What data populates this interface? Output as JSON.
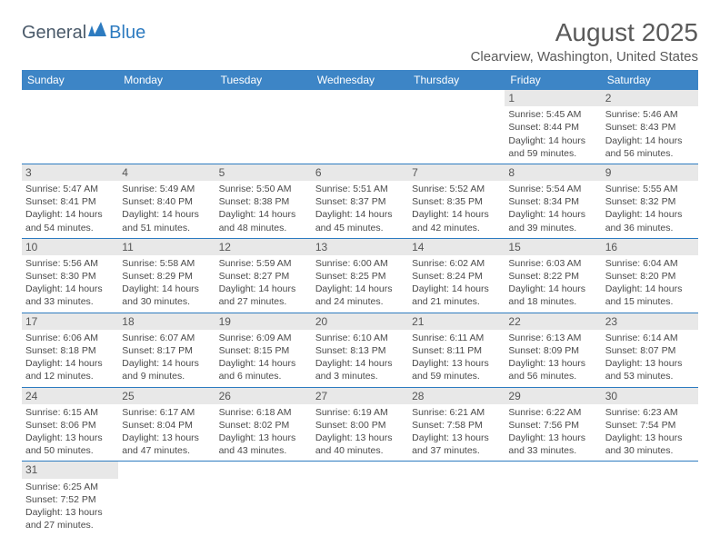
{
  "logo": {
    "text1": "General",
    "text2": "Blue"
  },
  "title": "August 2025",
  "location": "Clearview, Washington, United States",
  "header_color": "#3d85c6",
  "border_color": "#2d7bc0",
  "daynum_bg": "#e8e8e8",
  "weekdays": [
    "Sunday",
    "Monday",
    "Tuesday",
    "Wednesday",
    "Thursday",
    "Friday",
    "Saturday"
  ],
  "weeks": [
    [
      null,
      null,
      null,
      null,
      null,
      {
        "n": "1",
        "sr": "5:45 AM",
        "ss": "8:44 PM",
        "dl": "14 hours and 59 minutes."
      },
      {
        "n": "2",
        "sr": "5:46 AM",
        "ss": "8:43 PM",
        "dl": "14 hours and 56 minutes."
      }
    ],
    [
      {
        "n": "3",
        "sr": "5:47 AM",
        "ss": "8:41 PM",
        "dl": "14 hours and 54 minutes."
      },
      {
        "n": "4",
        "sr": "5:49 AM",
        "ss": "8:40 PM",
        "dl": "14 hours and 51 minutes."
      },
      {
        "n": "5",
        "sr": "5:50 AM",
        "ss": "8:38 PM",
        "dl": "14 hours and 48 minutes."
      },
      {
        "n": "6",
        "sr": "5:51 AM",
        "ss": "8:37 PM",
        "dl": "14 hours and 45 minutes."
      },
      {
        "n": "7",
        "sr": "5:52 AM",
        "ss": "8:35 PM",
        "dl": "14 hours and 42 minutes."
      },
      {
        "n": "8",
        "sr": "5:54 AM",
        "ss": "8:34 PM",
        "dl": "14 hours and 39 minutes."
      },
      {
        "n": "9",
        "sr": "5:55 AM",
        "ss": "8:32 PM",
        "dl": "14 hours and 36 minutes."
      }
    ],
    [
      {
        "n": "10",
        "sr": "5:56 AM",
        "ss": "8:30 PM",
        "dl": "14 hours and 33 minutes."
      },
      {
        "n": "11",
        "sr": "5:58 AM",
        "ss": "8:29 PM",
        "dl": "14 hours and 30 minutes."
      },
      {
        "n": "12",
        "sr": "5:59 AM",
        "ss": "8:27 PM",
        "dl": "14 hours and 27 minutes."
      },
      {
        "n": "13",
        "sr": "6:00 AM",
        "ss": "8:25 PM",
        "dl": "14 hours and 24 minutes."
      },
      {
        "n": "14",
        "sr": "6:02 AM",
        "ss": "8:24 PM",
        "dl": "14 hours and 21 minutes."
      },
      {
        "n": "15",
        "sr": "6:03 AM",
        "ss": "8:22 PM",
        "dl": "14 hours and 18 minutes."
      },
      {
        "n": "16",
        "sr": "6:04 AM",
        "ss": "8:20 PM",
        "dl": "14 hours and 15 minutes."
      }
    ],
    [
      {
        "n": "17",
        "sr": "6:06 AM",
        "ss": "8:18 PM",
        "dl": "14 hours and 12 minutes."
      },
      {
        "n": "18",
        "sr": "6:07 AM",
        "ss": "8:17 PM",
        "dl": "14 hours and 9 minutes."
      },
      {
        "n": "19",
        "sr": "6:09 AM",
        "ss": "8:15 PM",
        "dl": "14 hours and 6 minutes."
      },
      {
        "n": "20",
        "sr": "6:10 AM",
        "ss": "8:13 PM",
        "dl": "14 hours and 3 minutes."
      },
      {
        "n": "21",
        "sr": "6:11 AM",
        "ss": "8:11 PM",
        "dl": "13 hours and 59 minutes."
      },
      {
        "n": "22",
        "sr": "6:13 AM",
        "ss": "8:09 PM",
        "dl": "13 hours and 56 minutes."
      },
      {
        "n": "23",
        "sr": "6:14 AM",
        "ss": "8:07 PM",
        "dl": "13 hours and 53 minutes."
      }
    ],
    [
      {
        "n": "24",
        "sr": "6:15 AM",
        "ss": "8:06 PM",
        "dl": "13 hours and 50 minutes."
      },
      {
        "n": "25",
        "sr": "6:17 AM",
        "ss": "8:04 PM",
        "dl": "13 hours and 47 minutes."
      },
      {
        "n": "26",
        "sr": "6:18 AM",
        "ss": "8:02 PM",
        "dl": "13 hours and 43 minutes."
      },
      {
        "n": "27",
        "sr": "6:19 AM",
        "ss": "8:00 PM",
        "dl": "13 hours and 40 minutes."
      },
      {
        "n": "28",
        "sr": "6:21 AM",
        "ss": "7:58 PM",
        "dl": "13 hours and 37 minutes."
      },
      {
        "n": "29",
        "sr": "6:22 AM",
        "ss": "7:56 PM",
        "dl": "13 hours and 33 minutes."
      },
      {
        "n": "30",
        "sr": "6:23 AM",
        "ss": "7:54 PM",
        "dl": "13 hours and 30 minutes."
      }
    ],
    [
      {
        "n": "31",
        "sr": "6:25 AM",
        "ss": "7:52 PM",
        "dl": "13 hours and 27 minutes."
      },
      null,
      null,
      null,
      null,
      null,
      null
    ]
  ],
  "labels": {
    "sunrise": "Sunrise: ",
    "sunset": "Sunset: ",
    "daylight": "Daylight: "
  }
}
